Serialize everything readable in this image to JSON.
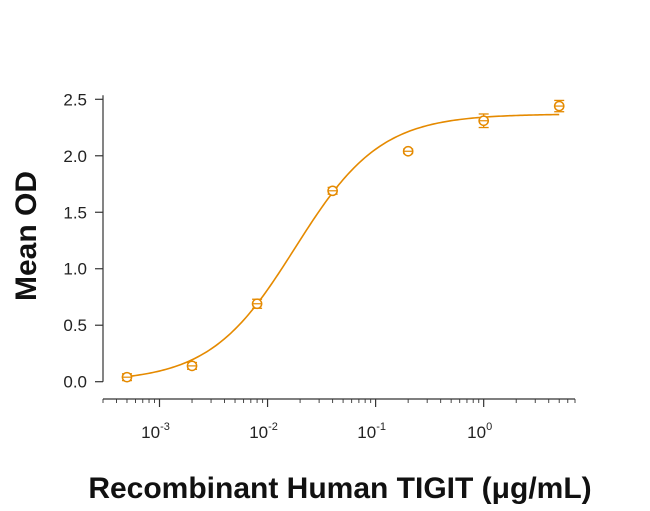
{
  "chart_data": {
    "type": "scatter",
    "title": "",
    "xlabel": "Recombinant Human TIGIT (μg/mL)",
    "ylabel": "Mean OD",
    "x_scale": "log",
    "xlim": [
      0.0003,
      7
    ],
    "ylim": [
      -0.1,
      2.6
    ],
    "y_ticks": [
      "0.0",
      "0.5",
      "1.0",
      "1.5",
      "2.0",
      "2.5"
    ],
    "x_ticks": [
      {
        "base": "10",
        "exp": "-3",
        "value": 0.001
      },
      {
        "base": "10",
        "exp": "-2",
        "value": 0.01
      },
      {
        "base": "10",
        "exp": "-1",
        "value": 0.1
      },
      {
        "base": "10",
        "exp": "0",
        "value": 1
      }
    ],
    "grid": false,
    "legend": "none",
    "color": "#E58A00",
    "series": [
      {
        "points": [
          {
            "x": 0.0005,
            "y": 0.04,
            "err": 0.03
          },
          {
            "x": 0.002,
            "y": 0.14,
            "err": 0.03
          },
          {
            "x": 0.008,
            "y": 0.69,
            "err": 0.04
          },
          {
            "x": 0.04,
            "y": 1.69,
            "err": 0.03
          },
          {
            "x": 0.2,
            "y": 2.04,
            "err": 0.02
          },
          {
            "x": 1,
            "y": 2.31,
            "err": 0.06
          },
          {
            "x": 5,
            "y": 2.44,
            "err": 0.05
          }
        ]
      }
    ],
    "fit_curve": {
      "model": "4PL",
      "bottom": 0.0,
      "top": 2.37,
      "ec50": 0.018,
      "hill": 1.1
    }
  }
}
